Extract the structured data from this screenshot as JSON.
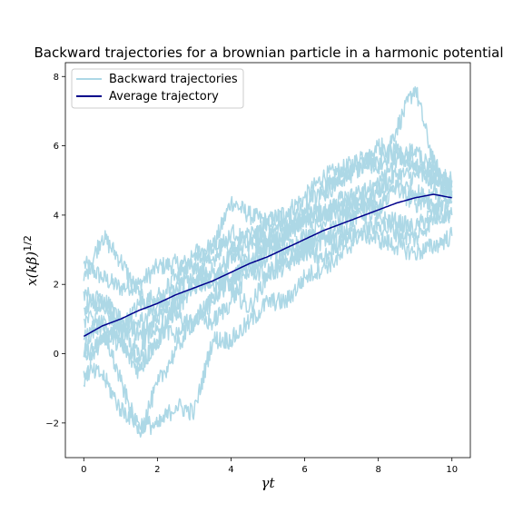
{
  "chart_data": {
    "type": "line",
    "title": "Backward trajectories for a brownian particle in a harmonic potential",
    "xlabel": "γt",
    "ylabel": "x(kβ)^1/2",
    "xlim": [
      -0.5,
      10.5
    ],
    "ylim": [
      -3,
      8.4
    ],
    "xticks": [
      0,
      2,
      4,
      6,
      8,
      10
    ],
    "yticks": [
      -2,
      0,
      2,
      4,
      6,
      8
    ],
    "xtick_labels": [
      "0",
      "2",
      "4",
      "6",
      "8",
      "10"
    ],
    "ytick_labels": [
      "−2",
      "0",
      "2",
      "4",
      "6",
      "8"
    ],
    "legend_position": "top-left",
    "legend": [
      "Backward trajectories",
      "Average trajectory"
    ],
    "colors": {
      "trajectories": "#add8e6",
      "average": "#00008b"
    },
    "x": [
      0,
      0.5,
      1,
      1.5,
      2,
      2.5,
      3,
      3.5,
      4,
      4.5,
      5,
      5.5,
      6,
      6.5,
      7,
      7.5,
      8,
      8.5,
      9,
      9.5,
      10
    ],
    "series": [
      {
        "values": [
          2.6,
          2.2,
          1.9,
          2.0,
          2.5,
          2.6,
          2.6,
          3.0,
          4.4,
          4.0,
          3.8,
          4.1,
          4.5,
          5.1,
          5.3,
          5.6,
          5.5,
          5.9,
          5.3,
          5.0,
          5.0
        ]
      },
      {
        "values": [
          2.1,
          3.4,
          2.7,
          1.7,
          1.0,
          1.7,
          2.9,
          3.1,
          3.1,
          2.5,
          2.8,
          3.5,
          4.0,
          4.6,
          5.0,
          5.6,
          5.4,
          6.5,
          7.7,
          5.5,
          4.8
        ]
      },
      {
        "values": [
          1.8,
          1.3,
          0.7,
          1.4,
          1.7,
          1.1,
          0.8,
          1.6,
          2.1,
          2.7,
          3.2,
          3.0,
          3.4,
          3.8,
          4.5,
          4.2,
          4.7,
          5.2,
          5.1,
          5.4,
          4.4
        ]
      },
      {
        "values": [
          1.0,
          0.9,
          0.4,
          -0.3,
          0.3,
          1.6,
          2.0,
          2.0,
          2.2,
          2.6,
          3.1,
          3.4,
          3.9,
          4.1,
          4.4,
          4.6,
          4.2,
          4.8,
          4.3,
          4.7,
          4.6
        ]
      },
      {
        "values": [
          0.4,
          0.9,
          0.2,
          -0.5,
          0.4,
          1.3,
          1.9,
          2.4,
          1.9,
          1.3,
          2.3,
          2.5,
          3.1,
          3.4,
          3.4,
          4.1,
          3.9,
          3.8,
          3.6,
          4.1,
          4.0
        ]
      },
      {
        "values": [
          -0.1,
          0.3,
          0.7,
          0.6,
          0.8,
          0.5,
          1.0,
          1.5,
          2.8,
          3.2,
          3.1,
          2.7,
          2.9,
          3.3,
          3.8,
          4.3,
          4.2,
          4.9,
          4.7,
          4.3,
          4.5
        ]
      },
      {
        "values": [
          -0.5,
          -0.6,
          -1.6,
          -2.0,
          -2.1,
          -1.5,
          -1.7,
          0.4,
          0.4,
          0.9,
          1.5,
          1.5,
          2.2,
          2.5,
          2.8,
          3.5,
          3.3,
          3.1,
          2.9,
          3.1,
          3.4
        ]
      },
      {
        "values": [
          -0.9,
          0.8,
          -0.8,
          -2.3,
          -0.9,
          0.1,
          1.0,
          0.9,
          1.5,
          2.4,
          2.3,
          2.9,
          3.0,
          2.7,
          3.3,
          3.5,
          3.7,
          3.5,
          3.3,
          3.9,
          4.1
        ]
      },
      {
        "values": [
          1.3,
          1.7,
          0.7,
          0.0,
          1.1,
          1.9,
          2.3,
          2.7,
          3.5,
          3.2,
          3.8,
          3.9,
          4.2,
          4.8,
          5.1,
          5.3,
          6.0,
          5.8,
          5.5,
          5.1,
          5.0
        ]
      },
      {
        "values": [
          0.0,
          1.6,
          1.0,
          0.9,
          1.4,
          2.3,
          2.6,
          2.0,
          2.9,
          3.5,
          3.3,
          3.7,
          3.8,
          4.1,
          4.0,
          4.6,
          4.9,
          5.6,
          5.9,
          5.2,
          4.7
        ]
      },
      {
        "name": "Average trajectory",
        "values": [
          0.5,
          0.8,
          1.0,
          1.25,
          1.45,
          1.7,
          1.9,
          2.1,
          2.35,
          2.6,
          2.8,
          3.05,
          3.3,
          3.55,
          3.75,
          3.95,
          4.15,
          4.35,
          4.5,
          4.6,
          4.5
        ]
      }
    ]
  }
}
